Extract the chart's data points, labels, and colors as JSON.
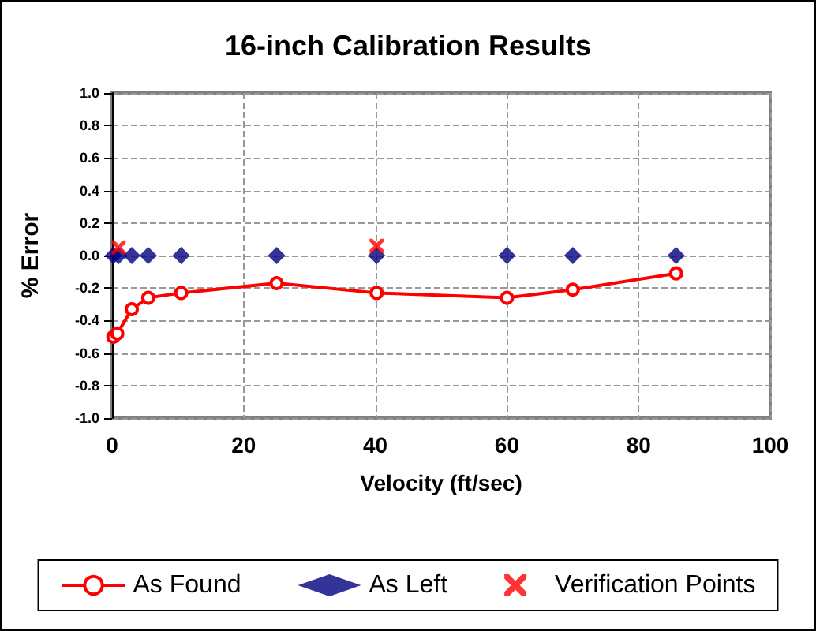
{
  "chart_data": {
    "type": "line",
    "title": "16-inch Calibration Results",
    "xlabel": "Velocity (ft/sec)",
    "ylabel": "% Error",
    "xlim": [
      0,
      100
    ],
    "xticks": [
      0,
      20,
      40,
      60,
      80,
      100
    ],
    "ylim": [
      -1,
      1
    ],
    "yticks": [
      {
        "value": -1,
        "label": "-1.0"
      },
      {
        "value": -0.8,
        "label": "-0.8"
      },
      {
        "value": -0.6,
        "label": "-0.6"
      },
      {
        "value": -0.4,
        "label": "-0.4"
      },
      {
        "value": -0.2,
        "label": "-0.2"
      },
      {
        "value": 0,
        "label": "0.0"
      },
      {
        "value": 0.2,
        "label": "0.2"
      },
      {
        "value": 0.4,
        "label": "0.4"
      },
      {
        "value": 0.6,
        "label": "0.6"
      },
      {
        "value": 0.8,
        "label": "0.8"
      },
      {
        "value": 1,
        "label": "1.0"
      }
    ],
    "grid": true,
    "legend": "bottom",
    "series": [
      {
        "name": "As Found",
        "marker": "circle",
        "color": "#ff0000",
        "x": [
          0.2,
          0.8,
          3,
          5.5,
          10.5,
          25,
          40.2,
          60,
          70,
          85.7
        ],
        "values": [
          -0.5,
          -0.48,
          -0.33,
          -0.26,
          -0.23,
          -0.17,
          -0.23,
          -0.26,
          -0.21,
          -0.11
        ]
      },
      {
        "name": "As Left",
        "type": "scatter",
        "marker": "diamond",
        "color": "#000080",
        "x": [
          0.2,
          1,
          3,
          5.5,
          10.5,
          25,
          40.2,
          60,
          70,
          85.7
        ],
        "values": [
          0,
          0,
          0,
          0,
          0,
          0,
          0,
          0,
          0,
          0
        ]
      },
      {
        "name": "Verification Points",
        "type": "scatter",
        "marker": "cross",
        "color": "#ff0000",
        "x": [
          1,
          40.2
        ],
        "values": [
          0.05,
          0.06
        ]
      }
    ]
  }
}
